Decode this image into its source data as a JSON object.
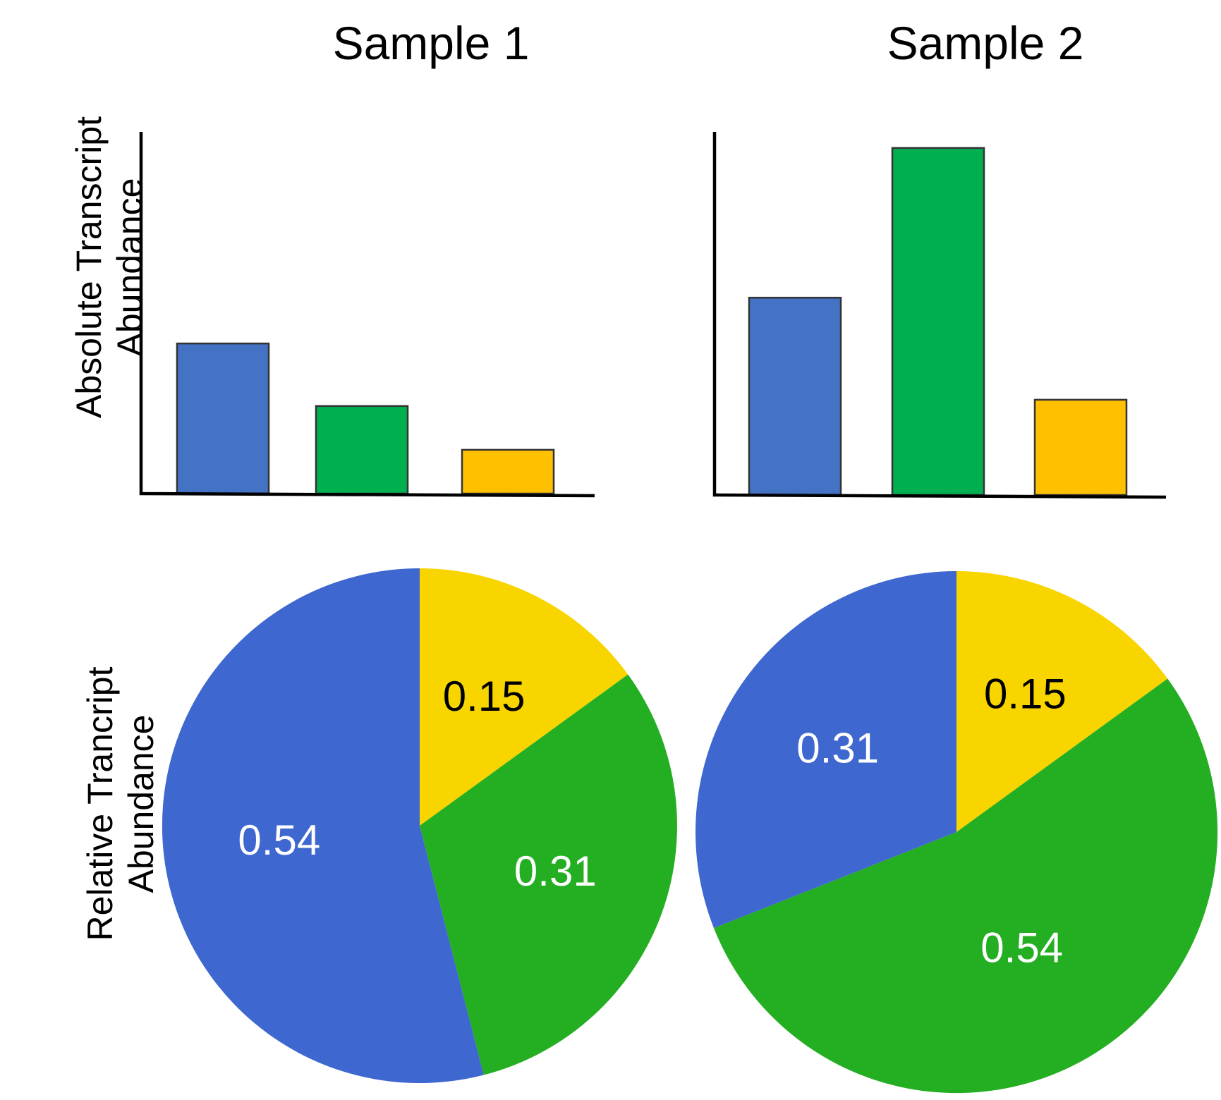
{
  "panels": [
    {
      "title": "Sample 1"
    },
    {
      "title": "Sample 2"
    }
  ],
  "ylabels": {
    "top": [
      "Absolute Transcript",
      "Abundance"
    ],
    "bottom": [
      "Relative Trancript",
      "Abundance"
    ]
  },
  "colors": {
    "bar_blue": "#4472C4",
    "bar_green": "#00B050",
    "bar_orange": "#FFC000",
    "pie_blue": "#3F67D0",
    "pie_green": "#24AE22",
    "pie_yellow": "#F9D500"
  },
  "chart_data": [
    {
      "type": "bar",
      "panel": "Sample 1",
      "ylabel": "Absolute Transcript Abundance",
      "values": [
        2.4,
        1.4,
        0.7
      ],
      "colors": [
        "#4472C4",
        "#00B050",
        "#FFC000"
      ],
      "ylim": [
        0,
        5.3
      ]
    },
    {
      "type": "bar",
      "panel": "Sample 2",
      "ylabel": "Absolute Transcript Abundance",
      "values": [
        2.9,
        5.1,
        1.4
      ],
      "colors": [
        "#4472C4",
        "#00B050",
        "#FFC000"
      ],
      "ylim": [
        0,
        5.3
      ]
    },
    {
      "type": "pie",
      "panel": "Sample 1",
      "ylabel": "Relative Trancript Abundance",
      "slices": [
        {
          "label": "0.15",
          "value": 0.15,
          "color": "#F9D500",
          "text_color": "#000000"
        },
        {
          "label": "0.31",
          "value": 0.31,
          "color": "#24AE22",
          "text_color": "#ffffff"
        },
        {
          "label": "0.54",
          "value": 0.54,
          "color": "#3F67D0",
          "text_color": "#ffffff"
        }
      ]
    },
    {
      "type": "pie",
      "panel": "Sample 2",
      "ylabel": "Relative Trancript Abundance",
      "slices": [
        {
          "label": "0.15",
          "value": 0.15,
          "color": "#F9D500",
          "text_color": "#000000"
        },
        {
          "label": "0.54",
          "value": 0.54,
          "color": "#24AE22",
          "text_color": "#ffffff"
        },
        {
          "label": "0.31",
          "value": 0.31,
          "color": "#3F67D0",
          "text_color": "#ffffff"
        }
      ]
    }
  ]
}
